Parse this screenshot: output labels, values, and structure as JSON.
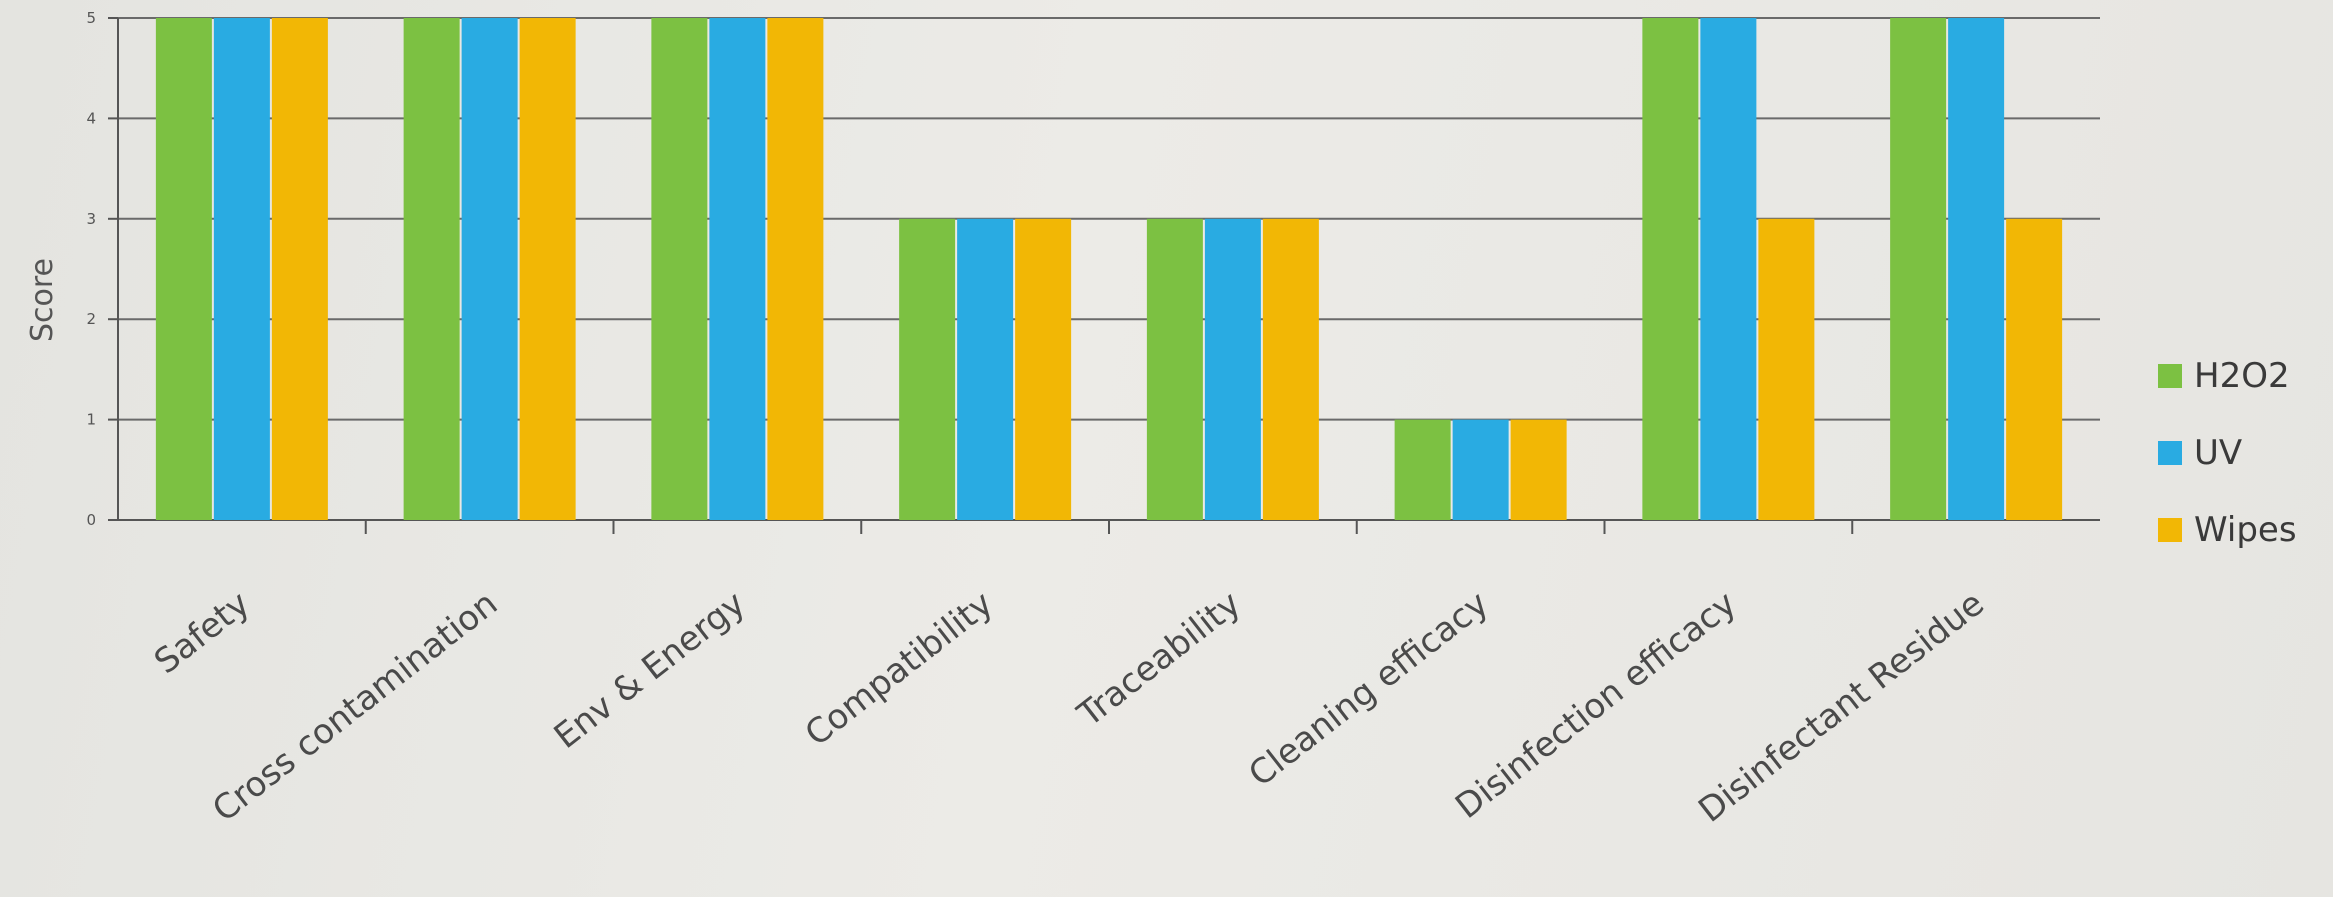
{
  "chart_data": {
    "type": "bar",
    "title": "",
    "xlabel": "",
    "ylabel": "Score",
    "ylim": [
      0,
      5
    ],
    "yticks": [
      0,
      1,
      2,
      3,
      4,
      5
    ],
    "grid": true,
    "legend_position": "right",
    "categories": [
      "Safety",
      "Cross contamination",
      "Env & Energy",
      "Compatibility",
      "Traceability",
      "Cleaning efficacy",
      "Disinfection efficacy",
      "Disinfectant Residue"
    ],
    "series": [
      {
        "name": "H2O2",
        "color": "#7cc142",
        "values": [
          5.0,
          5.0,
          5.0,
          3.0,
          3.0,
          1.0,
          5.0,
          5.0
        ]
      },
      {
        "name": "UV",
        "color": "#29abe2",
        "values": [
          5.0,
          5.0,
          5.0,
          3.0,
          3.0,
          1.0,
          5.0,
          5.0
        ]
      },
      {
        "name": "Wipes",
        "color": "#f2b705",
        "values": [
          5.0,
          5.0,
          5.0,
          3.0,
          3.0,
          1.0,
          3.0,
          3.0
        ]
      }
    ]
  }
}
